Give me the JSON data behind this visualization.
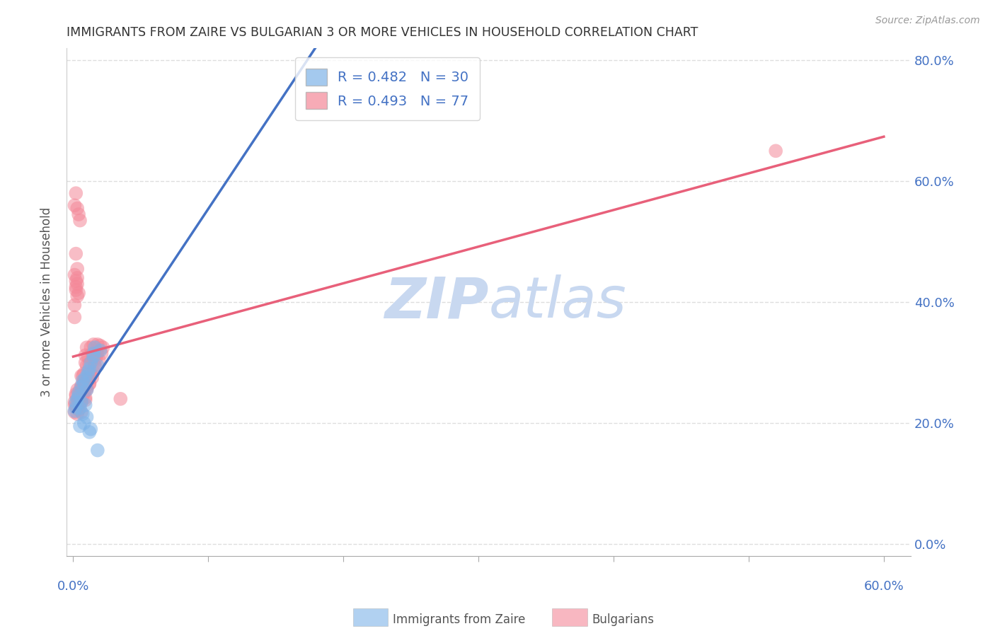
{
  "title": "IMMIGRANTS FROM ZAIRE VS BULGARIAN 3 OR MORE VEHICLES IN HOUSEHOLD CORRELATION CHART",
  "source": "Source: ZipAtlas.com",
  "ylabel": "3 or more Vehicles in Household",
  "legend_label1": "Immigrants from Zaire",
  "legend_label2": "Bulgarians",
  "R1": 0.482,
  "N1": 30,
  "R2": 0.493,
  "N2": 77,
  "xlim": [
    -0.005,
    0.62
  ],
  "ylim": [
    -0.02,
    0.82
  ],
  "xtick_positions": [
    0.0,
    0.1,
    0.2,
    0.3,
    0.4,
    0.5,
    0.6
  ],
  "ytick_positions": [
    0.0,
    0.2,
    0.4,
    0.6,
    0.8
  ],
  "color_blue": "#7eb3e8",
  "color_pink": "#f48898",
  "color_line_blue": "#4472c4",
  "color_line_pink": "#e8607a",
  "color_axis_labels": "#4472c4",
  "color_grid": "#dedede",
  "watermark_color": "#c8d8f0",
  "zaire_x": [
    0.001,
    0.002,
    0.003,
    0.004,
    0.005,
    0.006,
    0.007,
    0.008,
    0.009,
    0.01,
    0.011,
    0.012,
    0.013,
    0.015,
    0.016,
    0.018,
    0.02,
    0.005,
    0.008,
    0.01,
    0.012,
    0.006,
    0.009,
    0.011,
    0.007,
    0.004,
    0.015,
    0.002,
    0.018,
    0.013
  ],
  "zaire_y": [
    0.22,
    0.235,
    0.24,
    0.25,
    0.225,
    0.235,
    0.215,
    0.265,
    0.275,
    0.255,
    0.285,
    0.29,
    0.3,
    0.315,
    0.325,
    0.295,
    0.32,
    0.195,
    0.2,
    0.21,
    0.185,
    0.26,
    0.23,
    0.28,
    0.27,
    0.245,
    0.31,
    0.225,
    0.155,
    0.19
  ],
  "bulg_x": [
    0.001,
    0.001,
    0.002,
    0.002,
    0.003,
    0.003,
    0.004,
    0.004,
    0.005,
    0.005,
    0.006,
    0.006,
    0.007,
    0.007,
    0.008,
    0.008,
    0.009,
    0.009,
    0.01,
    0.01,
    0.011,
    0.012,
    0.013,
    0.014,
    0.015,
    0.016,
    0.017,
    0.018,
    0.002,
    0.003,
    0.001,
    0.002,
    0.003,
    0.001,
    0.002,
    0.003,
    0.004,
    0.001,
    0.002,
    0.003,
    0.001,
    0.002,
    0.003,
    0.004,
    0.005,
    0.006,
    0.007,
    0.008,
    0.009,
    0.01,
    0.011,
    0.012,
    0.013,
    0.014,
    0.015,
    0.016,
    0.017,
    0.018,
    0.019,
    0.02,
    0.021,
    0.022,
    0.001,
    0.002,
    0.003,
    0.004,
    0.005,
    0.006,
    0.007,
    0.008,
    0.009,
    0.01,
    0.011,
    0.012,
    0.013,
    0.52,
    0.035
  ],
  "bulg_y": [
    0.23,
    0.56,
    0.245,
    0.58,
    0.255,
    0.555,
    0.24,
    0.545,
    0.248,
    0.535,
    0.278,
    0.262,
    0.26,
    0.278,
    0.27,
    0.282,
    0.3,
    0.312,
    0.295,
    0.325,
    0.31,
    0.298,
    0.325,
    0.315,
    0.33,
    0.295,
    0.315,
    0.33,
    0.48,
    0.455,
    0.445,
    0.435,
    0.43,
    0.395,
    0.425,
    0.41,
    0.415,
    0.375,
    0.42,
    0.44,
    0.235,
    0.248,
    0.225,
    0.242,
    0.255,
    0.235,
    0.258,
    0.268,
    0.242,
    0.255,
    0.272,
    0.265,
    0.28,
    0.275,
    0.285,
    0.295,
    0.308,
    0.315,
    0.305,
    0.328,
    0.315,
    0.325,
    0.218,
    0.228,
    0.215,
    0.222,
    0.235,
    0.218,
    0.245,
    0.25,
    0.238,
    0.258,
    0.272,
    0.265,
    0.28,
    0.65,
    0.24
  ]
}
